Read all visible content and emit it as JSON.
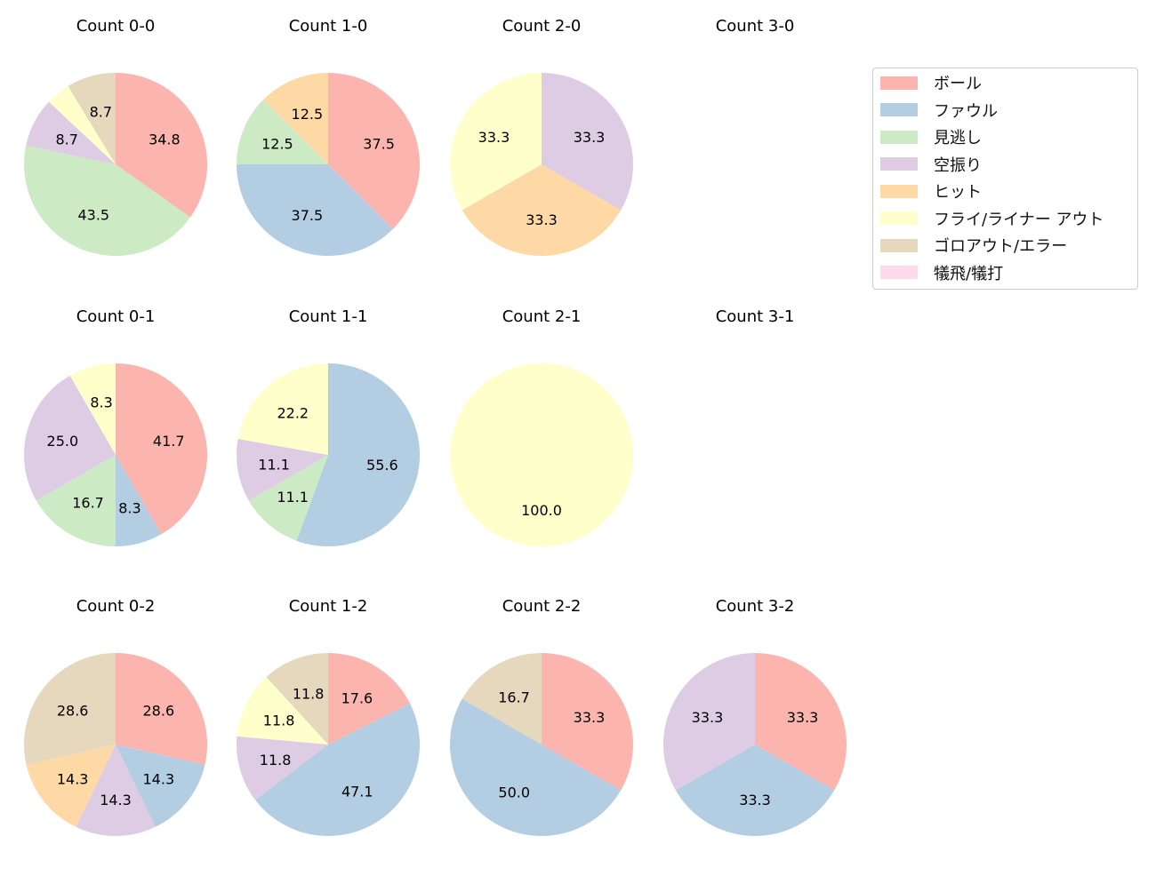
{
  "chart_data": {
    "type": "pie",
    "start_angle_deg": 90,
    "direction": "clockwise",
    "label_format": "percent, one decimal",
    "categories": [
      "ボール",
      "ファウル",
      "見逃し",
      "空振り",
      "ヒット",
      "フライ/ライナー アウト",
      "ゴロアウト/エラー",
      "犠飛/犠打"
    ],
    "colors": [
      "#fbb4ae",
      "#b3cde3",
      "#ccebc5",
      "#decbe4",
      "#fed9a6",
      "#ffffcc",
      "#e5d8bd",
      "#fddaec"
    ],
    "legend_position": "right",
    "charts": [
      {
        "title": "Count 0-0",
        "values": [
          34.8,
          0,
          43.5,
          8.7,
          0,
          4.3,
          8.7,
          0
        ]
      },
      {
        "title": "Count 1-0",
        "values": [
          37.5,
          37.5,
          12.5,
          0,
          12.5,
          0,
          0,
          0
        ]
      },
      {
        "title": "Count 2-0",
        "values": [
          0,
          0,
          0,
          33.3,
          33.3,
          33.3,
          0,
          0
        ]
      },
      {
        "title": "Count 3-0",
        "values": []
      },
      {
        "title": "Count 0-1",
        "values": [
          41.7,
          8.3,
          16.7,
          25.0,
          0,
          8.3,
          0,
          0
        ]
      },
      {
        "title": "Count 1-1",
        "values": [
          0,
          55.6,
          11.1,
          11.1,
          0,
          22.2,
          0,
          0
        ]
      },
      {
        "title": "Count 2-1",
        "values": [
          0,
          0,
          0,
          0,
          0,
          100.0,
          0,
          0
        ]
      },
      {
        "title": "Count 3-1",
        "values": []
      },
      {
        "title": "Count 0-2",
        "values": [
          28.6,
          14.3,
          0,
          14.3,
          14.3,
          0,
          28.6,
          0
        ]
      },
      {
        "title": "Count 1-2",
        "values": [
          17.6,
          47.1,
          0,
          11.8,
          0,
          11.8,
          11.8,
          0
        ]
      },
      {
        "title": "Count 2-2",
        "values": [
          33.3,
          50.0,
          0,
          0,
          0,
          0,
          16.7,
          0
        ]
      },
      {
        "title": "Count 3-2",
        "values": [
          33.3,
          33.3,
          0,
          33.3,
          0,
          0,
          0,
          0
        ]
      }
    ]
  }
}
